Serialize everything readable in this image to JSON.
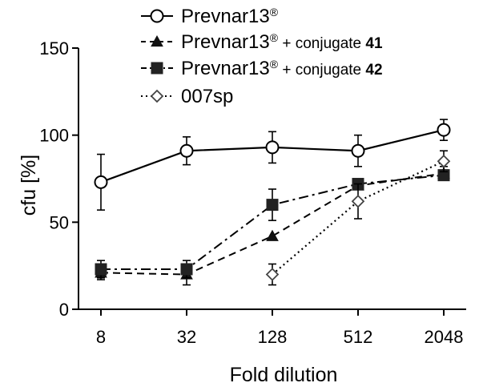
{
  "chart_data": {
    "type": "line",
    "x": [
      8,
      32,
      128,
      512,
      2048
    ],
    "x_scale": "log2",
    "xlabel": "Fold dilution",
    "ylabel": "cfu [%]",
    "ylim": [
      0,
      150
    ],
    "yticks": [
      0,
      50,
      100,
      150
    ],
    "grid": false,
    "legend_position": "top",
    "series": [
      {
        "name": "Prevnar13",
        "name_sup": "®",
        "name_suffix": "",
        "name_bold": "",
        "marker": "circle-open",
        "line": "solid",
        "x": [
          8,
          32,
          128,
          512,
          2048
        ],
        "values": [
          73,
          91,
          93,
          91,
          103
        ],
        "errors": [
          16,
          8,
          9,
          9,
          6
        ]
      },
      {
        "name": "Prevnar13",
        "name_sup": "®",
        "name_suffix": " + conjugate ",
        "name_bold": "41",
        "marker": "triangle",
        "line": "dashed",
        "x": [
          8,
          32,
          128,
          512,
          2048
        ],
        "values": [
          21,
          20,
          42,
          71,
          78
        ],
        "errors": [
          4,
          6,
          0,
          0,
          4
        ]
      },
      {
        "name": "Prevnar13",
        "name_sup": "®",
        "name_suffix": " + conjugate ",
        "name_bold": "42",
        "marker": "square",
        "line": "dashdot",
        "x": [
          8,
          32,
          128,
          512,
          2048
        ],
        "values": [
          23,
          23,
          60,
          72,
          77
        ],
        "errors": [
          5,
          5,
          9,
          0,
          3
        ]
      },
      {
        "name": "007sp",
        "name_sup": "",
        "name_suffix": "",
        "name_bold": "",
        "marker": "diamond-open",
        "line": "dotted",
        "x": [
          128,
          512,
          2048
        ],
        "values": [
          20,
          62,
          85
        ],
        "errors": [
          6,
          10,
          6
        ]
      }
    ]
  }
}
